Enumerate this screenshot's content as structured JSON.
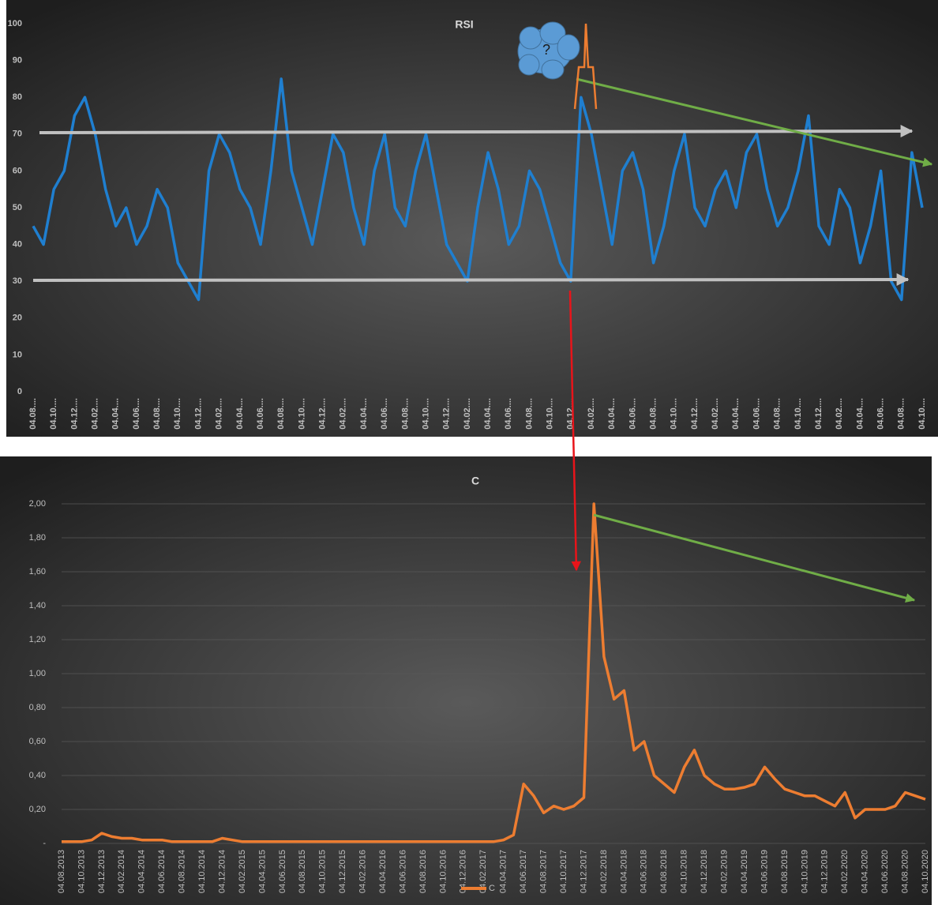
{
  "chart_data": [
    {
      "type": "line",
      "title": "RSI",
      "annotation": "?",
      "categories": [
        "04.08....",
        null,
        "04.10....",
        null,
        "04.12....",
        null,
        "04.02....",
        null,
        "04.04....",
        null,
        "04.06....",
        null,
        "04.08....",
        null,
        "04.10....",
        null,
        "04.12....",
        null,
        "04.02....",
        null,
        "04.04....",
        null,
        "04.06....",
        null,
        "04.08....",
        null,
        "04.10....",
        null,
        "04.12....",
        null,
        "04.02....",
        null,
        "04.04....",
        null,
        "04.06....",
        null,
        "04.08....",
        null,
        "04.10....",
        null,
        "04.12....",
        null,
        "04.02....",
        null,
        "04.04....",
        null,
        "04.06....",
        null,
        "04.08....",
        null,
        "04.10....",
        null,
        "04.12....",
        null,
        "04.02....",
        null,
        "04.04....",
        null,
        "04.06....",
        null,
        "04.08....",
        null,
        "04.10....",
        null,
        "04.12....",
        null,
        "04.02....",
        null,
        "04.04....",
        null,
        "04.06....",
        null,
        "04.08....",
        null,
        "04.10....",
        null,
        "04.12....",
        null,
        "04.02....",
        null,
        "04.04....",
        null,
        "04.06....",
        null,
        "04.08....",
        null,
        "04.10...."
      ],
      "values": [
        45,
        40,
        55,
        60,
        75,
        80,
        70,
        55,
        45,
        50,
        40,
        45,
        55,
        50,
        35,
        30,
        25,
        60,
        70,
        65,
        55,
        50,
        40,
        60,
        85,
        60,
        50,
        40,
        55,
        70,
        65,
        50,
        40,
        60,
        70,
        50,
        45,
        60,
        70,
        55,
        40,
        35,
        30,
        50,
        65,
        55,
        40,
        45,
        60,
        55,
        45,
        35,
        30,
        80,
        70,
        55,
        40,
        60,
        65,
        55,
        35,
        45,
        60,
        70,
        50,
        45,
        55,
        60,
        50,
        65,
        70,
        55,
        45,
        50,
        60,
        75,
        45,
        40,
        55,
        50,
        35,
        45,
        60,
        30,
        25,
        65,
        50
      ],
      "color": "#1f7fd0",
      "ylim": [
        0,
        100
      ],
      "yticks": [
        0,
        10,
        20,
        30,
        40,
        50,
        60,
        70,
        80,
        90,
        100
      ],
      "grid": false
    },
    {
      "type": "line",
      "title": "C",
      "categories": [
        "04.08.2013",
        null,
        "04.10.2013",
        null,
        "04.12.2013",
        null,
        "04.02.2014",
        null,
        "04.04.2014",
        null,
        "04.06.2014",
        null,
        "04.08.2014",
        null,
        "04.10.2014",
        null,
        "04.12.2014",
        null,
        "04.02.2015",
        null,
        "04.04.2015",
        null,
        "04.06.2015",
        null,
        "04.08.2015",
        null,
        "04.10.2015",
        null,
        "04.12.2015",
        null,
        "04.02.2016",
        null,
        "04.04.2016",
        null,
        "04.06.2016",
        null,
        "04.08.2016",
        null,
        "04.10.2016",
        null,
        "04.12.2016",
        null,
        "04.02.2017",
        null,
        "04.04.2017",
        null,
        "04.06.2017",
        null,
        "04.08.2017",
        null,
        "04.10.2017",
        null,
        "04.12.2017",
        null,
        "04.02.2018",
        null,
        "04.04.2018",
        null,
        "04.06.2018",
        null,
        "04.08.2018",
        null,
        "04.10.2018",
        null,
        "04.12.2018",
        null,
        "04.02.2019",
        null,
        "04.04.2019",
        null,
        "04.06.2019",
        null,
        "04.08.2019",
        null,
        "04.10.2019",
        null,
        "04.12.2019",
        null,
        "04.02.2020",
        null,
        "04.04.2020",
        null,
        "04.06.2020",
        null,
        "04.08.2020",
        null,
        "04.10.2020"
      ],
      "series": [
        {
          "name": "C",
          "color": "#ed7d31",
          "values": [
            0.01,
            0.01,
            0.01,
            0.02,
            0.06,
            0.04,
            0.03,
            0.03,
            0.02,
            0.02,
            0.02,
            0.01,
            0.01,
            0.01,
            0.01,
            0.01,
            0.03,
            0.02,
            0.01,
            0.01,
            0.01,
            0.01,
            0.01,
            0.01,
            0.01,
            0.01,
            0.01,
            0.01,
            0.01,
            0.01,
            0.01,
            0.01,
            0.01,
            0.01,
            0.01,
            0.01,
            0.01,
            0.01,
            0.01,
            0.01,
            0.01,
            0.01,
            0.01,
            0.01,
            0.02,
            0.05,
            0.35,
            0.28,
            0.18,
            0.22,
            0.2,
            0.22,
            0.27,
            2.0,
            1.1,
            0.85,
            0.9,
            0.55,
            0.6,
            0.4,
            0.35,
            0.3,
            0.45,
            0.55,
            0.4,
            0.35,
            0.32,
            0.32,
            0.33,
            0.35,
            0.45,
            0.38,
            0.32,
            0.3,
            0.28,
            0.28,
            0.25,
            0.22,
            0.3,
            0.15,
            0.2,
            0.2,
            0.2,
            0.22,
            0.3,
            0.28,
            0.26
          ]
        }
      ],
      "ylim": [
        0,
        2
      ],
      "yticks": [
        {
          "value": 0,
          "label": "-"
        },
        {
          "value": 0.2,
          "label": "0,20"
        },
        {
          "value": 0.4,
          "label": "0,40"
        },
        {
          "value": 0.6,
          "label": "0,60"
        },
        {
          "value": 0.8,
          "label": "0,80"
        },
        {
          "value": 1,
          "label": "1,00"
        },
        {
          "value": 1.2,
          "label": "1,20"
        },
        {
          "value": 1.4,
          "label": "1,40"
        },
        {
          "value": 1.6,
          "label": "1,60"
        },
        {
          "value": 1.8,
          "label": "1,80"
        },
        {
          "value": 2,
          "label": "2,00"
        }
      ],
      "grid": true
    }
  ]
}
